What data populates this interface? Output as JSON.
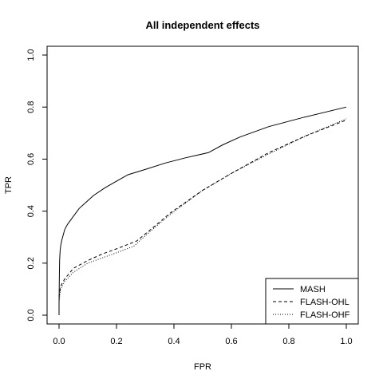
{
  "chart_data": {
    "type": "line",
    "title": "All independent effects",
    "xlabel": "FPR",
    "ylabel": "TPR",
    "xlim": [
      0,
      1
    ],
    "ylim": [
      0,
      1
    ],
    "xticks": [
      "0.0",
      "0.2",
      "0.4",
      "0.6",
      "0.8",
      "1.0"
    ],
    "yticks": [
      "0.0",
      "0.2",
      "0.4",
      "0.6",
      "0.8",
      "1.0"
    ],
    "grid": false,
    "legend_position": "bottom-right",
    "series": [
      {
        "name": "MASH",
        "style": "solid",
        "points": [
          [
            0.0,
            0.0
          ],
          [
            0.0,
            0.05
          ],
          [
            0.001,
            0.15
          ],
          [
            0.002,
            0.21
          ],
          [
            0.004,
            0.25
          ],
          [
            0.006,
            0.27
          ],
          [
            0.01,
            0.29
          ],
          [
            0.015,
            0.31
          ],
          [
            0.02,
            0.33
          ],
          [
            0.03,
            0.35
          ],
          [
            0.05,
            0.38
          ],
          [
            0.07,
            0.41
          ],
          [
            0.09,
            0.43
          ],
          [
            0.12,
            0.46
          ],
          [
            0.16,
            0.49
          ],
          [
            0.2,
            0.515
          ],
          [
            0.24,
            0.54
          ],
          [
            0.3,
            0.56
          ],
          [
            0.37,
            0.585
          ],
          [
            0.44,
            0.605
          ],
          [
            0.52,
            0.625
          ],
          [
            0.57,
            0.655
          ],
          [
            0.63,
            0.685
          ],
          [
            0.73,
            0.725
          ],
          [
            0.85,
            0.76
          ],
          [
            1.0,
            0.8
          ]
        ]
      },
      {
        "name": "FLASH-OHL",
        "style": "dashed",
        "points": [
          [
            0.0,
            0.07
          ],
          [
            0.005,
            0.11
          ],
          [
            0.02,
            0.14
          ],
          [
            0.05,
            0.18
          ],
          [
            0.1,
            0.21
          ],
          [
            0.15,
            0.235
          ],
          [
            0.2,
            0.255
          ],
          [
            0.27,
            0.285
          ],
          [
            0.32,
            0.33
          ],
          [
            0.39,
            0.395
          ],
          [
            0.5,
            0.48
          ],
          [
            0.6,
            0.545
          ],
          [
            0.73,
            0.625
          ],
          [
            0.86,
            0.69
          ],
          [
            1.0,
            0.75
          ]
        ]
      },
      {
        "name": "FLASH-OHF",
        "style": "dotted",
        "points": [
          [
            0.0,
            0.05
          ],
          [
            0.005,
            0.1
          ],
          [
            0.02,
            0.13
          ],
          [
            0.05,
            0.165
          ],
          [
            0.1,
            0.2
          ],
          [
            0.15,
            0.22
          ],
          [
            0.2,
            0.24
          ],
          [
            0.26,
            0.265
          ],
          [
            0.32,
            0.325
          ],
          [
            0.39,
            0.39
          ],
          [
            0.5,
            0.48
          ],
          [
            0.6,
            0.545
          ],
          [
            0.73,
            0.62
          ],
          [
            0.86,
            0.69
          ],
          [
            1.0,
            0.755
          ]
        ]
      }
    ]
  }
}
